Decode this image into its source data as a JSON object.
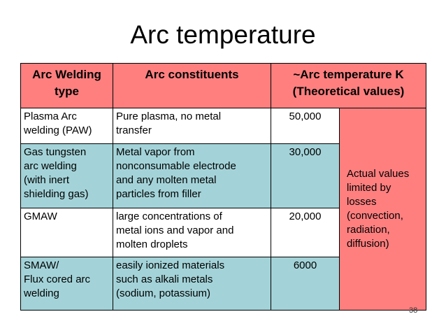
{
  "slide": {
    "title": "Arc temperature",
    "page_number": "38"
  },
  "table": {
    "headers": [
      [
        "Arc Welding",
        "type"
      ],
      [
        "Arc constituents"
      ],
      [
        "~Arc temperature K",
        "(Theoretical values)"
      ]
    ],
    "rows": [
      {
        "type": [
          "Plasma Arc",
          "welding (PAW)"
        ],
        "constituents": [
          "Pure plasma, no metal",
          "transfer"
        ],
        "temp": "50,000"
      },
      {
        "type": [
          "Gas tungsten",
          "arc welding",
          "(with inert",
          "shielding gas)"
        ],
        "constituents": [
          "Metal vapor from",
          "nonconsumable electrode",
          "and any molten metal",
          "particles from filler"
        ],
        "temp": "30,000"
      },
      {
        "type": [
          "GMAW"
        ],
        "constituents": [
          "large concentrations of",
          "metal ions and vapor and",
          "molten droplets"
        ],
        "temp": "20,000"
      },
      {
        "type": [
          "SMAW/",
          "Flux cored arc",
          "welding"
        ],
        "constituents": [
          "easily ionized materials",
          "such as alkali metals",
          "(sodium, potassium)"
        ],
        "temp": "6000"
      }
    ],
    "note": [
      "Actual values",
      "limited by",
      "losses",
      "(convection,",
      "radiation,",
      "diffusion)"
    ]
  },
  "colors": {
    "header_bg": "#ff7f7f",
    "teal_row_bg": "#a3d3d8",
    "white_row_bg": "#ffffff"
  }
}
